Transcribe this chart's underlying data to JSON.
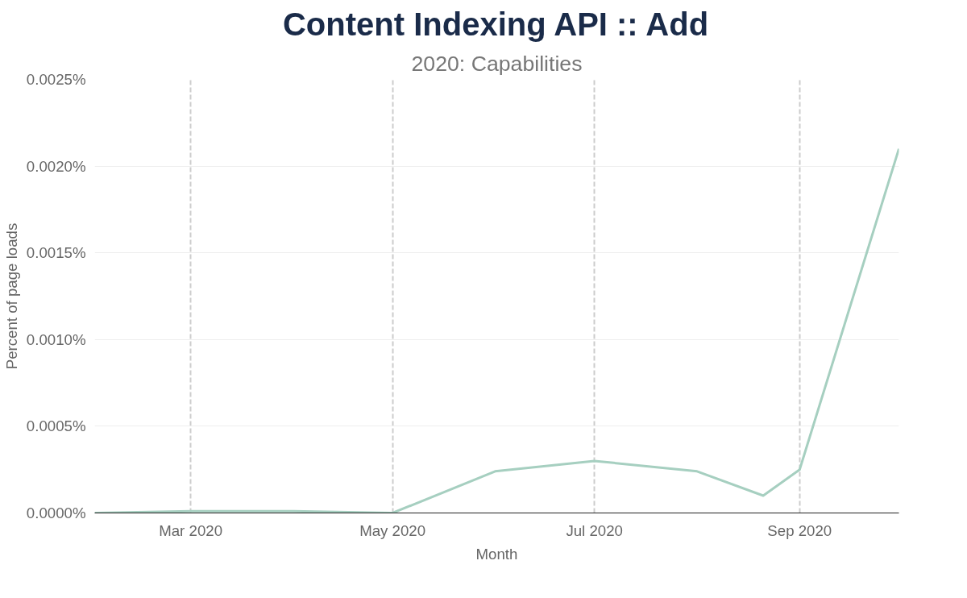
{
  "chart_data": {
    "type": "line",
    "title": "Content Indexing API :: Add",
    "subtitle": "2020: Capabilities",
    "xlabel": "Month",
    "ylabel": "Percent of page loads",
    "x": [
      "2020-02-01",
      "2020-03-01",
      "2020-04-01",
      "2020-05-01",
      "2020-06-01",
      "2020-07-01",
      "2020-08-01",
      "2020-08-21",
      "2020-09-01",
      "2020-10-01"
    ],
    "series": [
      {
        "color": "#a6cfc0",
        "values": [
          0.0,
          1e-05,
          1e-05,
          0.0,
          0.00024,
          0.0003,
          0.00024,
          0.0001,
          0.00025,
          0.0021
        ]
      }
    ],
    "xlim": [
      "2020-02-01",
      "2020-10-01"
    ],
    "xticks": [
      {
        "value": "2020-03-01",
        "label": "Mar 2020"
      },
      {
        "value": "2020-05-01",
        "label": "May 2020"
      },
      {
        "value": "2020-07-01",
        "label": "Jul 2020"
      },
      {
        "value": "2020-09-01",
        "label": "Sep 2020"
      }
    ],
    "ylim": [
      0,
      0.0025
    ],
    "yticks": [
      {
        "value": 0,
        "label": "0.0000%"
      },
      {
        "value": 0.0005,
        "label": "0.0005%"
      },
      {
        "value": 0.001,
        "label": "0.0010%"
      },
      {
        "value": 0.0015,
        "label": "0.0015%"
      },
      {
        "value": 0.002,
        "label": "0.0020%"
      },
      {
        "value": 0.0025,
        "label": "0.0025%"
      }
    ],
    "grid": true,
    "marker": "none",
    "line_style": "solid"
  }
}
